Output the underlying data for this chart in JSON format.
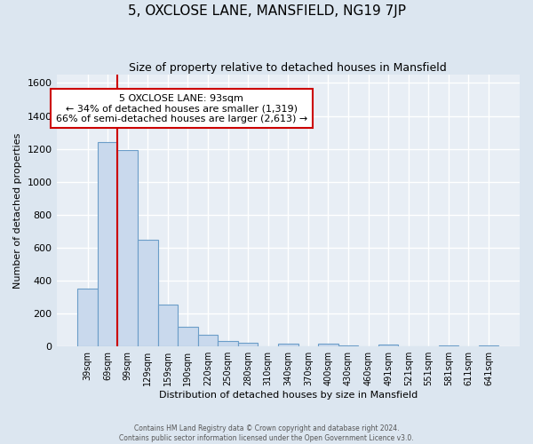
{
  "title": "5, OXCLOSE LANE, MANSFIELD, NG19 7JP",
  "subtitle": "Size of property relative to detached houses in Mansfield",
  "xlabel": "Distribution of detached houses by size in Mansfield",
  "ylabel": "Number of detached properties",
  "bar_labels": [
    "39sqm",
    "69sqm",
    "99sqm",
    "129sqm",
    "159sqm",
    "190sqm",
    "220sqm",
    "250sqm",
    "280sqm",
    "310sqm",
    "340sqm",
    "370sqm",
    "400sqm",
    "430sqm",
    "460sqm",
    "491sqm",
    "521sqm",
    "551sqm",
    "581sqm",
    "611sqm",
    "641sqm"
  ],
  "bar_values": [
    350,
    1240,
    1190,
    650,
    255,
    120,
    70,
    35,
    20,
    0,
    15,
    0,
    15,
    5,
    0,
    10,
    0,
    0,
    5,
    0,
    5
  ],
  "bar_color": "#c9d9ed",
  "bar_edge_color": "#6b9dc8",
  "vline_color": "#cc0000",
  "annotation_title": "5 OXCLOSE LANE: 93sqm",
  "annotation_line1": "← 34% of detached houses are smaller (1,319)",
  "annotation_line2": "66% of semi-detached houses are larger (2,613) →",
  "annotation_box_facecolor": "#ffffff",
  "annotation_box_edgecolor": "#cc0000",
  "footer1": "Contains HM Land Registry data © Crown copyright and database right 2024.",
  "footer2": "Contains public sector information licensed under the Open Government Licence v3.0.",
  "bg_color": "#dce6f0",
  "plot_bg_color": "#e8eef5",
  "grid_color": "#ffffff",
  "ylim": [
    0,
    1650
  ],
  "yticks": [
    0,
    200,
    400,
    600,
    800,
    1000,
    1200,
    1400,
    1600
  ]
}
